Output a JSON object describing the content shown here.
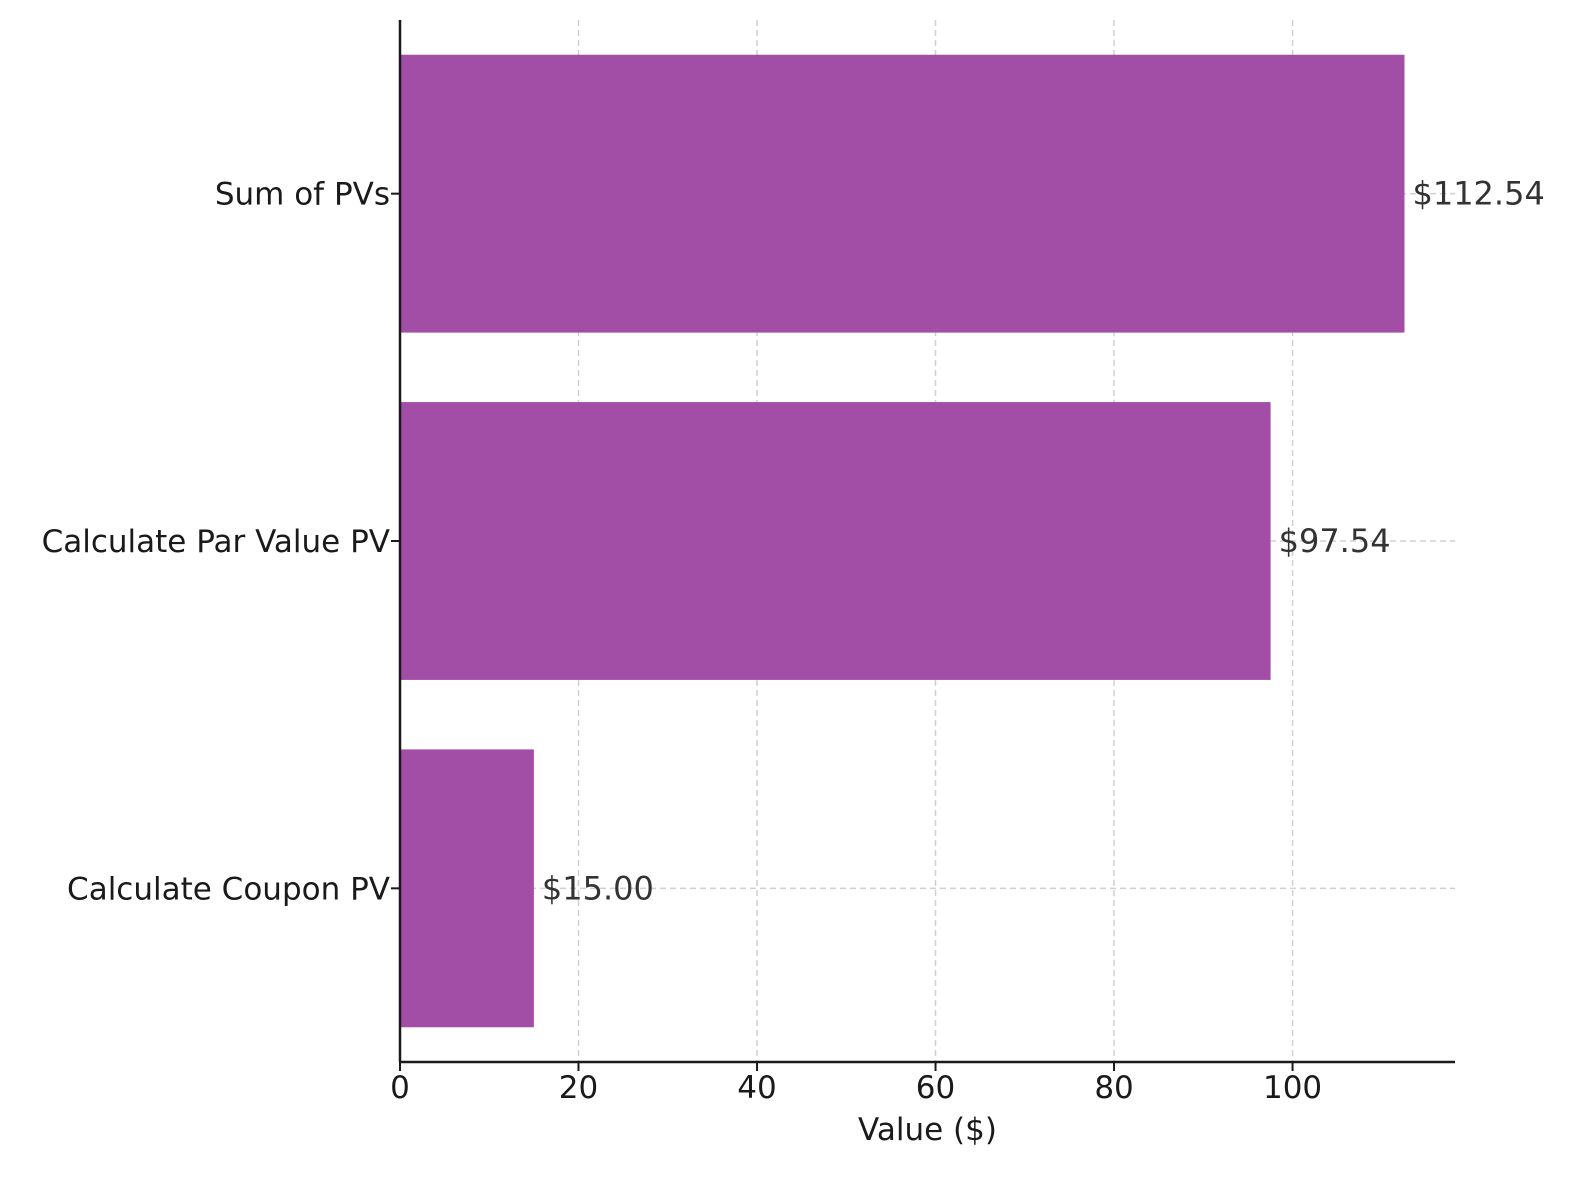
{
  "chart_data": {
    "type": "bar",
    "orientation": "horizontal",
    "title": "",
    "xlabel": "Value ($)",
    "ylabel": "",
    "categories": [
      "Calculate Coupon PV",
      "Calculate Par Value PV",
      "Sum of PVs"
    ],
    "values": [
      15.0,
      97.54,
      112.54
    ],
    "data_labels": [
      "$15.00",
      "$97.54",
      "$112.54"
    ],
    "xlim": [
      0,
      118.2
    ],
    "xticks": [
      0,
      20,
      40,
      60,
      80,
      100
    ],
    "grid": true,
    "bar_color": "#a34ea6"
  }
}
